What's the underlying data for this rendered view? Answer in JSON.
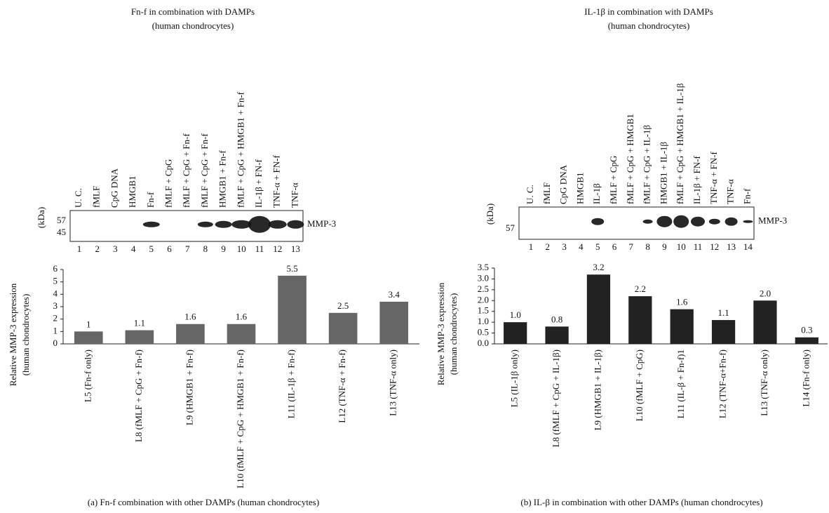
{
  "chart_data": [
    {
      "type": "bar",
      "title": [
        "Fn-f in combination with DAMPs",
        "(human chondrocytes)"
      ],
      "y_label": [
        "Relative MMP-3 expression",
        "(human chondrocytes)"
      ],
      "categories": [
        "L5 (Fn-f only)",
        "L8 (fMLF + CpG + Fn-f)",
        "L9 (HMGB1 + Fn-f)",
        "L10 (fMLF + CpG + HMGB1 + Fn-f)",
        "L11 (IL-1β + Fn-f)",
        "L12 (TNF-α + Fn-f)",
        "L13 (TNF-α only)"
      ],
      "values": [
        1,
        1.1,
        1.6,
        1.6,
        5.5,
        2.5,
        3.4
      ],
      "color": "#666666",
      "ylim": [
        0,
        6
      ],
      "yticks": [
        0,
        1,
        2,
        3,
        4,
        5,
        6
      ],
      "caption": "(a) Fn-f combination with other DAMPs (human chondrocytes)"
    },
    {
      "type": "bar",
      "title": [
        "IL-1β in combination with DAMPs",
        "(human chondrocytes)"
      ],
      "y_label": [
        "Relative MMP-3 expression",
        "(human chondrocytes)"
      ],
      "categories": [
        "L5 (IL-1β only)",
        "L8 (fMLF + CpG + IL-1β)",
        "L9 (HMGB1 + IL-1β)",
        "L10 (fMLF + CpG)",
        "L11 (IL-β + Fn-f)1",
        "L12 (TNF-α+Fn-f)",
        "L13 (TNF-α only)",
        "L14 (Fn-f only)"
      ],
      "values": [
        1.0,
        0.8,
        3.2,
        2.2,
        1.6,
        1.1,
        2.0,
        0.3
      ],
      "value_labels": [
        "1.0",
        "0.8",
        "3.2",
        "2.2",
        "1.6",
        "1.1",
        "2.0",
        "0.3"
      ],
      "color": "#222222",
      "ylim": [
        0,
        3.5
      ],
      "yticks": [
        {
          "value": 0,
          "label": "0.0"
        },
        0.5,
        {
          "value": 1,
          "label": "1.0"
        },
        1.5,
        {
          "value": 2,
          "label": "2.0"
        },
        2.5,
        {
          "value": 3,
          "label": "3.0"
        },
        3.5
      ],
      "caption": "(b) IL-β in combination with other DAMPs (human chondrocytes)"
    }
  ],
  "blots": [
    {
      "lane_labels": [
        "U. C.",
        "fMLF",
        "CpG DNA",
        "HMGB1",
        "Fn-f",
        "fMLF + CpG",
        "fMLF + CpG + Fn-f",
        "fMLF + CpG + Fn-f",
        "HMGB1 + Fn-f",
        "fMLF + CpG + HMGB1 + Fn-f",
        "IL-1β + FN-f",
        "TNF-α + FN-f",
        "TNF-α"
      ],
      "lanes": [
        1,
        2,
        3,
        4,
        5,
        6,
        7,
        8,
        9,
        10,
        11,
        12,
        13
      ],
      "unit": "(kDa)",
      "markers": [
        57,
        45
      ],
      "protein": "MMP-3"
    },
    {
      "lane_labels": [
        "U. C.",
        "fMLF",
        "CpG DNA",
        "HMGB1",
        "IL-1β",
        "fMLF + CpG",
        "fMLF + CpG + HMGB1",
        "fMLF + CpG + IL-1β",
        "HMGB1 + IL-1β",
        "fMLF + CpG + HMGB1 + IL-1β",
        "IL-1β + FN-f",
        "TNF-α + FN-f",
        "TNF-α",
        "Fn-f"
      ],
      "lanes": [
        1,
        2,
        3,
        4,
        5,
        6,
        7,
        8,
        9,
        10,
        11,
        12,
        13,
        14
      ],
      "unit": "(kDa)",
      "markers": [
        57
      ],
      "protein": "MMP-3"
    }
  ]
}
